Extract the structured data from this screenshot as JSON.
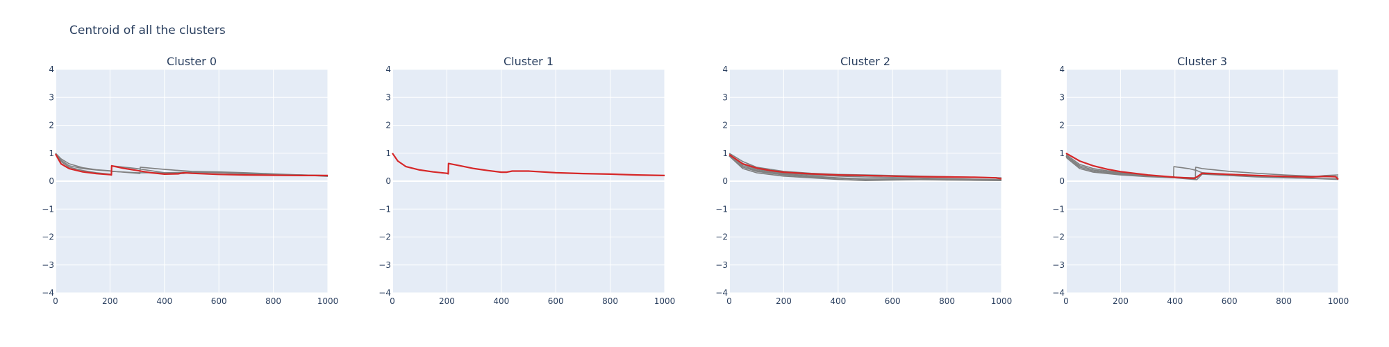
{
  "title": "Centroid of all the clusters",
  "colors": {
    "plot_bg": "#e5ecf6",
    "member_line": "#808080",
    "centroid_line": "#d62728",
    "text": "#2a3f5f"
  },
  "chart_data": [
    {
      "type": "line",
      "title": "Cluster 0",
      "xlim": [
        0,
        1000
      ],
      "ylim": [
        -4,
        4
      ],
      "xticks": [
        0,
        200,
        400,
        600,
        800,
        1000
      ],
      "yticks": [
        -4,
        -3,
        -2,
        -1,
        0,
        1,
        2,
        3,
        4
      ],
      "grid": true,
      "series": [
        {
          "role": "member",
          "x": [
            0,
            20,
            50,
            100,
            150,
            200,
            205,
            206,
            300,
            400,
            500,
            600,
            700,
            800,
            900,
            1000
          ],
          "y": [
            1.0,
            0.8,
            0.62,
            0.48,
            0.41,
            0.37,
            0.36,
            0.35,
            0.3,
            0.3,
            0.32,
            0.3,
            0.26,
            0.24,
            0.22,
            0.2
          ]
        },
        {
          "role": "member",
          "x": [
            0,
            20,
            50,
            100,
            150,
            200,
            300,
            310,
            311,
            400,
            500,
            600,
            700,
            800,
            900,
            1000
          ],
          "y": [
            1.0,
            0.75,
            0.55,
            0.45,
            0.4,
            0.36,
            0.28,
            0.27,
            0.5,
            0.42,
            0.35,
            0.33,
            0.3,
            0.26,
            0.22,
            0.17
          ]
        },
        {
          "role": "member",
          "x": [
            0,
            20,
            50,
            100,
            150,
            200,
            205,
            206,
            300,
            400,
            470,
            500,
            600,
            700,
            800,
            900,
            1000
          ],
          "y": [
            0.97,
            0.7,
            0.5,
            0.38,
            0.3,
            0.25,
            0.24,
            0.55,
            0.45,
            0.3,
            0.27,
            0.32,
            0.3,
            0.27,
            0.24,
            0.22,
            0.2
          ]
        },
        {
          "role": "centroid",
          "x": [
            0,
            20,
            50,
            100,
            150,
            200,
            205,
            206,
            250,
            300,
            350,
            400,
            450,
            470,
            500,
            600,
            700,
            800,
            900,
            1000
          ],
          "y": [
            0.97,
            0.62,
            0.45,
            0.33,
            0.27,
            0.23,
            0.22,
            0.55,
            0.46,
            0.38,
            0.3,
            0.25,
            0.26,
            0.3,
            0.28,
            0.24,
            0.22,
            0.21,
            0.2,
            0.2
          ]
        }
      ]
    },
    {
      "type": "line",
      "title": "Cluster 1",
      "xlim": [
        0,
        1000
      ],
      "ylim": [
        -4,
        4
      ],
      "xticks": [
        0,
        200,
        400,
        600,
        800,
        1000
      ],
      "yticks": [
        -4,
        -3,
        -2,
        -1,
        0,
        1,
        2,
        3,
        4
      ],
      "grid": true,
      "series": [
        {
          "role": "centroid",
          "x": [
            0,
            20,
            50,
            100,
            150,
            200,
            205,
            206,
            250,
            300,
            350,
            400,
            420,
            440,
            500,
            600,
            700,
            800,
            900,
            1000
          ],
          "y": [
            1.0,
            0.72,
            0.52,
            0.4,
            0.33,
            0.28,
            0.26,
            0.63,
            0.55,
            0.45,
            0.38,
            0.32,
            0.32,
            0.36,
            0.36,
            0.3,
            0.27,
            0.25,
            0.22,
            0.2
          ]
        }
      ]
    },
    {
      "type": "line",
      "title": "Cluster 2",
      "xlim": [
        0,
        1000
      ],
      "ylim": [
        -4,
        4
      ],
      "xticks": [
        0,
        200,
        400,
        600,
        800,
        1000
      ],
      "yticks": [
        -4,
        -3,
        -2,
        -1,
        0,
        1,
        2,
        3,
        4
      ],
      "grid": true,
      "series": [
        {
          "role": "member",
          "x": [
            0,
            50,
            100,
            200,
            300,
            400,
            500,
            600,
            700,
            800,
            900,
            1000
          ],
          "y": [
            1.0,
            0.7,
            0.5,
            0.35,
            0.28,
            0.24,
            0.22,
            0.2,
            0.18,
            0.16,
            0.14,
            0.12
          ]
        },
        {
          "role": "member",
          "x": [
            0,
            50,
            100,
            200,
            300,
            400,
            500,
            600,
            700,
            800,
            900,
            1000
          ],
          "y": [
            0.95,
            0.55,
            0.38,
            0.25,
            0.18,
            0.12,
            0.08,
            0.08,
            0.07,
            0.06,
            0.05,
            0.04
          ]
        },
        {
          "role": "member",
          "x": [
            0,
            50,
            100,
            200,
            300,
            400,
            500,
            600,
            700,
            800,
            900,
            1000
          ],
          "y": [
            0.9,
            0.45,
            0.3,
            0.18,
            0.12,
            0.06,
            0.02,
            0.04,
            0.05,
            0.04,
            0.03,
            0.02
          ]
        },
        {
          "role": "member",
          "x": [
            0,
            50,
            100,
            200,
            300,
            400,
            500,
            600,
            700,
            800,
            900,
            1000
          ],
          "y": [
            0.9,
            0.5,
            0.35,
            0.22,
            0.15,
            0.1,
            0.06,
            0.07,
            0.06,
            0.05,
            0.04,
            0.03
          ]
        },
        {
          "role": "member",
          "x": [
            0,
            50,
            100,
            200,
            300,
            400,
            500,
            600,
            700,
            800,
            900,
            1000
          ],
          "y": [
            0.95,
            0.6,
            0.42,
            0.28,
            0.22,
            0.18,
            0.15,
            0.13,
            0.11,
            0.09,
            0.07,
            0.06
          ]
        },
        {
          "role": "centroid",
          "x": [
            0,
            50,
            100,
            150,
            200,
            300,
            400,
            500,
            600,
            700,
            800,
            900,
            980,
            1000
          ],
          "y": [
            0.95,
            0.62,
            0.47,
            0.38,
            0.32,
            0.26,
            0.22,
            0.2,
            0.18,
            0.16,
            0.15,
            0.14,
            0.12,
            0.08
          ]
        }
      ]
    },
    {
      "type": "line",
      "title": "Cluster 3",
      "xlim": [
        0,
        1000
      ],
      "ylim": [
        -4,
        4
      ],
      "xticks": [
        0,
        200,
        400,
        600,
        800,
        1000
      ],
      "yticks": [
        -4,
        -3,
        -2,
        -1,
        0,
        1,
        2,
        3,
        4
      ],
      "grid": true,
      "series": [
        {
          "role": "member",
          "x": [
            0,
            50,
            100,
            200,
            300,
            390,
            395,
            396,
            450,
            480,
            500,
            600,
            700,
            800,
            900,
            950,
            1000
          ],
          "y": [
            0.9,
            0.55,
            0.4,
            0.28,
            0.2,
            0.15,
            0.14,
            0.52,
            0.45,
            0.38,
            0.3,
            0.25,
            0.2,
            0.17,
            0.15,
            0.2,
            0.22
          ]
        },
        {
          "role": "member",
          "x": [
            0,
            50,
            100,
            200,
            300,
            400,
            470,
            475,
            476,
            500,
            600,
            700,
            800,
            900,
            1000
          ],
          "y": [
            0.85,
            0.45,
            0.32,
            0.22,
            0.16,
            0.12,
            0.1,
            0.09,
            0.5,
            0.45,
            0.35,
            0.28,
            0.22,
            0.18,
            0.15
          ]
        },
        {
          "role": "member",
          "x": [
            0,
            50,
            100,
            200,
            300,
            400,
            480,
            500,
            600,
            700,
            800,
            900,
            1000
          ],
          "y": [
            0.95,
            0.6,
            0.45,
            0.3,
            0.2,
            0.14,
            0.12,
            0.3,
            0.22,
            0.17,
            0.13,
            0.1,
            0.06
          ]
        },
        {
          "role": "member",
          "x": [
            0,
            50,
            100,
            200,
            300,
            400,
            480,
            500,
            600,
            700,
            800,
            900,
            1000
          ],
          "y": [
            0.9,
            0.5,
            0.36,
            0.25,
            0.18,
            0.12,
            0.05,
            0.25,
            0.2,
            0.15,
            0.12,
            0.1,
            0.08
          ]
        },
        {
          "role": "centroid",
          "x": [
            0,
            50,
            100,
            150,
            200,
            300,
            400,
            470,
            480,
            500,
            600,
            700,
            800,
            900,
            950,
            990,
            1000
          ],
          "y": [
            1.0,
            0.72,
            0.55,
            0.43,
            0.34,
            0.22,
            0.14,
            0.1,
            0.15,
            0.28,
            0.24,
            0.2,
            0.17,
            0.15,
            0.17,
            0.16,
            0.06
          ]
        }
      ]
    }
  ]
}
